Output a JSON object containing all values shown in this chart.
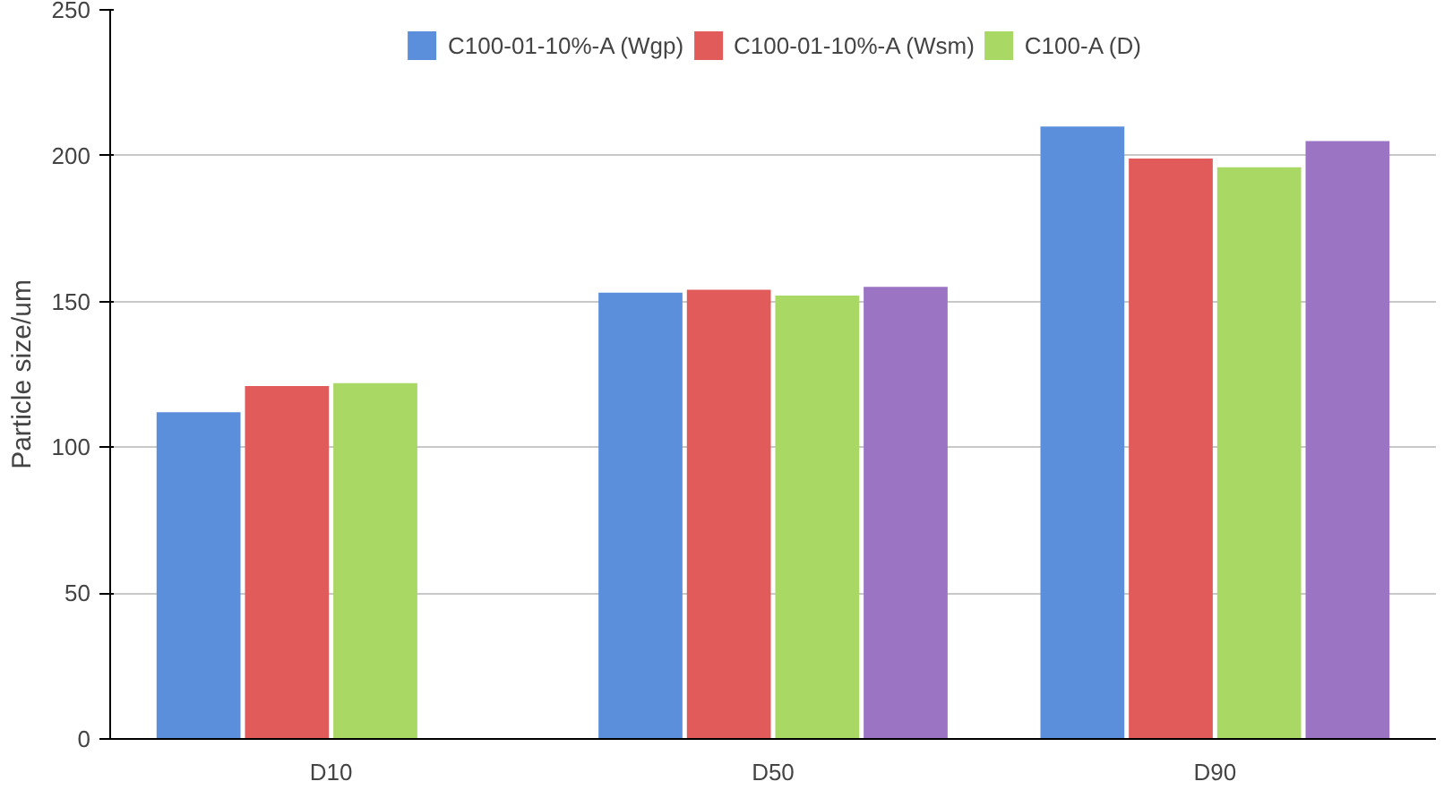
{
  "chart_data": {
    "type": "bar",
    "ylabel": "Particle size/um",
    "categories": [
      "D10",
      "D50",
      "D90"
    ],
    "series": [
      {
        "name": "C100-01-10%-A (Wgp)",
        "color": "#5b8fdc",
        "values": [
          112,
          153,
          210
        ]
      },
      {
        "name": "C100-01-10%-A (Wsm)",
        "color": "#e25b5b",
        "values": [
          121,
          154,
          199
        ]
      },
      {
        "name": "C100-A (D)",
        "color": "#a9d865",
        "values": [
          122,
          152,
          196
        ]
      },
      {
        "color": "#9b74c4",
        "values": [
          null,
          155,
          205
        ]
      }
    ],
    "ylim": [
      0,
      250
    ],
    "yticks": [
      0,
      50,
      100,
      150,
      200,
      250
    ],
    "grid": "y",
    "legend": "top"
  }
}
